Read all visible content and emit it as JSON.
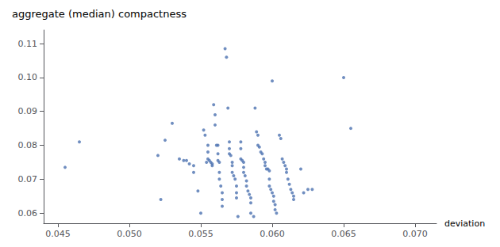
{
  "chart_data": {
    "type": "scatter",
    "title": "aggregate (median) compactness",
    "xlabel": "deviation",
    "color": "#4c72b0",
    "grid": false,
    "xlim": [
      0.044,
      0.0715
    ],
    "ylim": [
      0.057,
      0.114
    ],
    "xticks": [
      0.045,
      {
        "value": 0.05,
        "label": "0.050"
      },
      0.055,
      {
        "value": 0.06,
        "label": "0.060"
      },
      0.065,
      {
        "value": 0.07,
        "label": "0.070"
      }
    ],
    "yticks": [
      0.06,
      0.07,
      0.08,
      0.09,
      {
        "value": 0.1,
        "label": "0.10"
      },
      0.11
    ],
    "x": [
      0.0455,
      0.0465,
      0.052,
      0.0522,
      0.0525,
      0.053,
      0.0535,
      0.0538,
      0.054,
      0.0542,
      0.0545,
      0.0545,
      0.0548,
      0.055,
      0.0552,
      0.0553,
      0.0554,
      0.0555,
      0.0555,
      0.0555,
      0.0556,
      0.0557,
      0.0558,
      0.0558,
      0.0559,
      0.056,
      0.056,
      0.0561,
      0.0562,
      0.0562,
      0.0562,
      0.0563,
      0.0563,
      0.0563,
      0.0564,
      0.0565,
      0.0565,
      0.0565,
      0.0567,
      0.0568,
      0.0569,
      0.057,
      0.057,
      0.057,
      0.0571,
      0.0572,
      0.0572,
      0.0572,
      0.0573,
      0.0574,
      0.0575,
      0.0575,
      0.0575,
      0.0576,
      0.0578,
      0.0578,
      0.0578,
      0.0579,
      0.058,
      0.058,
      0.058,
      0.0581,
      0.0582,
      0.0582,
      0.0583,
      0.0584,
      0.0585,
      0.0585,
      0.0585,
      0.0587,
      0.0588,
      0.0589,
      0.059,
      0.059,
      0.0591,
      0.0592,
      0.0593,
      0.0594,
      0.0595,
      0.0595,
      0.0596,
      0.0597,
      0.0598,
      0.0598,
      0.0598,
      0.0599,
      0.06,
      0.06,
      0.0601,
      0.0601,
      0.0602,
      0.0602,
      0.0603,
      0.0605,
      0.0606,
      0.0607,
      0.0608,
      0.0609,
      0.061,
      0.061,
      0.0611,
      0.0612,
      0.0613,
      0.0614,
      0.0615,
      0.0615,
      0.062,
      0.0622,
      0.0625,
      0.0628,
      0.065,
      0.0655
    ],
    "values": [
      0.0735,
      0.081,
      0.077,
      0.064,
      0.0815,
      0.0865,
      0.076,
      0.0755,
      0.0755,
      0.0745,
      0.074,
      0.072,
      0.0665,
      0.06,
      0.0845,
      0.083,
      0.075,
      0.08,
      0.078,
      0.076,
      0.0755,
      0.075,
      0.0745,
      0.074,
      0.092,
      0.089,
      0.086,
      0.08,
      0.08,
      0.0775,
      0.0755,
      0.075,
      0.072,
      0.07,
      0.068,
      0.066,
      0.064,
      0.062,
      0.1085,
      0.106,
      0.091,
      0.081,
      0.079,
      0.0775,
      0.077,
      0.075,
      0.074,
      0.072,
      0.071,
      0.07,
      0.068,
      0.066,
      0.0645,
      0.059,
      0.081,
      0.079,
      0.076,
      0.0755,
      0.075,
      0.0735,
      0.072,
      0.071,
      0.0695,
      0.068,
      0.0665,
      0.0655,
      0.0645,
      0.063,
      0.06,
      0.059,
      0.091,
      0.084,
      0.083,
      0.08,
      0.0795,
      0.078,
      0.0775,
      0.076,
      0.075,
      0.074,
      0.073,
      0.073,
      0.0725,
      0.07,
      0.068,
      0.067,
      0.099,
      0.066,
      0.065,
      0.0635,
      0.0625,
      0.061,
      0.06,
      0.083,
      0.082,
      0.076,
      0.075,
      0.074,
      0.073,
      0.072,
      0.07,
      0.0685,
      0.067,
      0.066,
      0.065,
      0.064,
      0.073,
      0.066,
      0.067,
      0.067,
      0.1,
      0.085
    ]
  }
}
